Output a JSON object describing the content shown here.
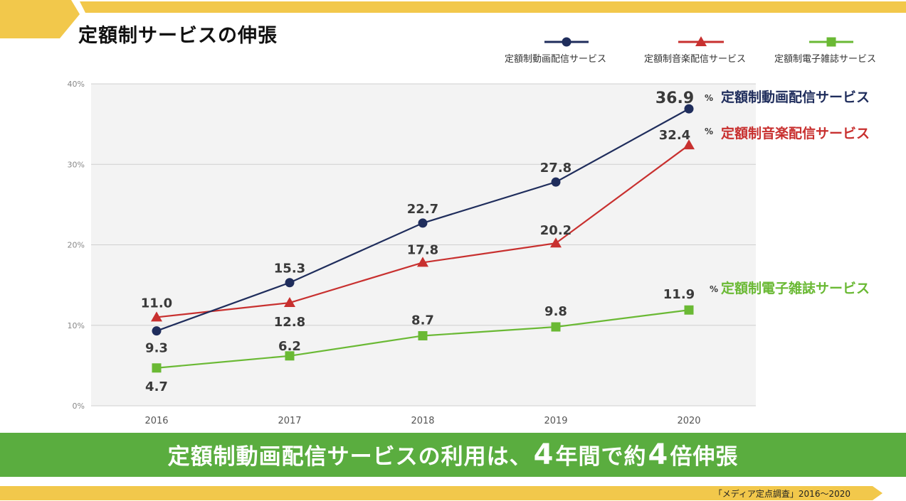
{
  "page_title": "定額制サービスの伸張",
  "banner": {
    "part1": "定額制動画配信サービスの利用は、",
    "num1": "4",
    "part2": "年間で約",
    "num2": "4",
    "part3": "倍伸張"
  },
  "source": "「メディア定点調査」2016～2020",
  "colors": {
    "yellow": "#f2c84b",
    "navy": "#1f2d5c",
    "red": "#c8302f",
    "green": "#6ab934",
    "banner_green": "#5aad3f",
    "plot_bg": "#f3f3f3"
  },
  "chart_data": {
    "type": "line",
    "x": [
      "2016",
      "2017",
      "2018",
      "2019",
      "2020"
    ],
    "ylim": [
      0,
      40
    ],
    "yticks": [
      "0%",
      "10%",
      "20%",
      "30%",
      "40%"
    ],
    "grid": true,
    "legend_position": "top-right",
    "series": [
      {
        "name": "定額制動画配信サービス",
        "marker": "circle",
        "values": [
          9.3,
          15.3,
          22.7,
          27.8,
          36.9
        ],
        "labels": [
          "9.3",
          "15.3",
          "22.7",
          "27.8",
          "36.9"
        ]
      },
      {
        "name": "定額制音楽配信サービス",
        "marker": "triangle",
        "values": [
          11.0,
          12.8,
          17.8,
          20.2,
          32.4
        ],
        "labels": [
          "11.0",
          "12.8",
          "17.8",
          "20.2",
          "32.4"
        ]
      },
      {
        "name": "定額制電子雑誌サービス",
        "marker": "square",
        "values": [
          4.7,
          6.2,
          8.7,
          9.8,
          11.9
        ],
        "labels": [
          "4.7",
          "6.2",
          "8.7",
          "9.8",
          "11.9"
        ]
      }
    ],
    "end_label_suffix": "%"
  }
}
